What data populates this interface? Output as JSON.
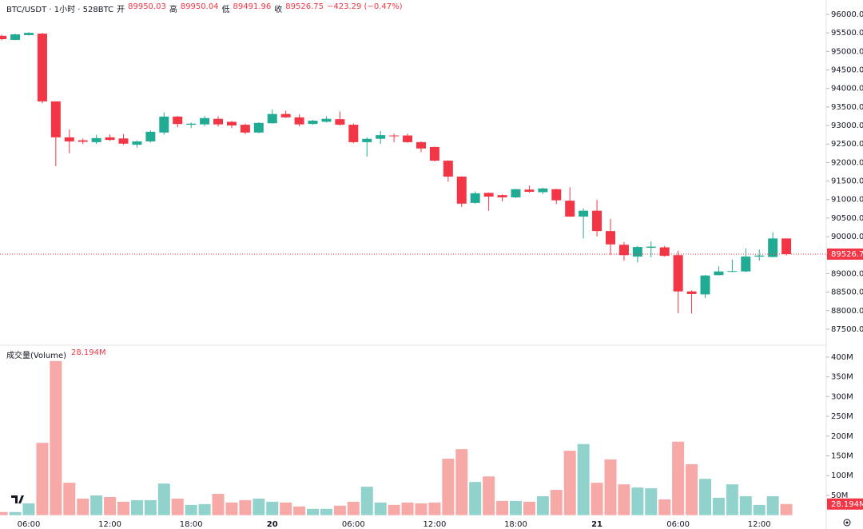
{
  "chart_data": [
    {
      "type": "candlestick",
      "title": "BTC/USDT · 1小时 · 528BTC",
      "ohlc_labels": [
        "开",
        "高",
        "低",
        "收"
      ],
      "change_label": "−423.29 (−0.47%)",
      "categories": [
        null,
        null,
        "06:00",
        null,
        null,
        null,
        null,
        null,
        "12:00",
        null,
        null,
        null,
        null,
        null,
        "18:00",
        null,
        null,
        null,
        null,
        null,
        "20",
        null,
        null,
        null,
        null,
        null,
        "06:00",
        null,
        null,
        null,
        null,
        null,
        "12:00",
        null,
        null,
        null,
        null,
        null,
        "18:00",
        null,
        null,
        null,
        null,
        null,
        "21",
        null,
        null,
        null,
        null,
        null,
        "06:00",
        null,
        null,
        null,
        null,
        null,
        "12:00",
        null,
        null
      ],
      "open": [
        95420,
        95310,
        95440,
        95480,
        93650,
        92680,
        92600,
        92550,
        92680,
        92650,
        92480,
        92570,
        92810,
        93240,
        93020,
        93030,
        93180,
        93100,
        93020,
        92810,
        93060,
        93310,
        93220,
        93040,
        93100,
        93170,
        93020,
        92550,
        92640,
        92730,
        92730,
        92550,
        92420,
        92050,
        91620,
        90910,
        91180,
        91120,
        91060,
        91270,
        91200,
        91280,
        90970,
        90540,
        90700,
        90150,
        89780,
        89460,
        89700,
        89710,
        89500,
        88520,
        88440,
        88960,
        89050,
        89060,
        89460,
        89450,
        89950.03
      ],
      "high": [
        95450,
        95480,
        95520,
        95500,
        93650,
        92890,
        92650,
        92750,
        92760,
        92770,
        92600,
        92870,
        93350,
        93260,
        93080,
        93260,
        93250,
        93120,
        93050,
        93090,
        93430,
        93400,
        93300,
        93150,
        93250,
        93380,
        93050,
        92680,
        92850,
        92780,
        92780,
        92570,
        92430,
        92060,
        91630,
        91220,
        91190,
        91140,
        91290,
        91380,
        91320,
        91290,
        91330,
        90760,
        90990,
        90480,
        89850,
        89750,
        89870,
        89750,
        89620,
        88550,
        88970,
        89200,
        89380,
        89680,
        89650,
        90120,
        89950.04
      ],
      "low": [
        95300,
        95300,
        95430,
        93600,
        91900,
        92250,
        92500,
        92500,
        92580,
        92480,
        92400,
        92540,
        92750,
        92950,
        92930,
        92980,
        92970,
        92930,
        92760,
        92790,
        93050,
        93200,
        92980,
        93020,
        93080,
        93000,
        92520,
        92160,
        92500,
        92550,
        92530,
        92280,
        92030,
        91480,
        90800,
        90890,
        90700,
        90950,
        91040,
        91180,
        91150,
        90880,
        90530,
        89950,
        90000,
        89500,
        89350,
        89300,
        89440,
        89460,
        87930,
        87920,
        88340,
        88950,
        89040,
        89040,
        89350,
        89440,
        89491.96
      ],
      "close": [
        95330,
        95460,
        95500,
        93650,
        92680,
        92570,
        92560,
        92660,
        92610,
        92510,
        92570,
        92830,
        93240,
        93040,
        93050,
        93200,
        93030,
        93000,
        92810,
        93070,
        93310,
        93220,
        93030,
        93130,
        93180,
        93020,
        92550,
        92640,
        92740,
        92720,
        92550,
        92380,
        92050,
        91620,
        90890,
        91170,
        91080,
        91060,
        91280,
        91210,
        91300,
        90980,
        90540,
        90700,
        90150,
        89790,
        89500,
        89720,
        89730,
        89480,
        88520,
        88450,
        88950,
        89060,
        89070,
        89460,
        89490,
        89950,
        89526.75
      ],
      "up_color": "#22ab94",
      "down_color": "#f23645",
      "ylim": [
        87111,
        96388
      ],
      "yticks": [
        {
          "value": 87500,
          "label": "87500.00"
        },
        {
          "value": 88000,
          "label": "88000.00"
        },
        {
          "value": 88500,
          "label": "88500.00"
        },
        {
          "value": 89000,
          "label": "89000.00"
        },
        {
          "value": 89500,
          "label": "89500.00"
        },
        {
          "value": 90000,
          "label": "90000.00"
        },
        {
          "value": 90500,
          "label": "90500.00"
        },
        {
          "value": 91000,
          "label": "91000.00"
        },
        {
          "value": 91500,
          "label": "91500.00"
        },
        {
          "value": 92000,
          "label": "92000.00"
        },
        {
          "value": 92500,
          "label": "92500.00"
        },
        {
          "value": 93000,
          "label": "93000.00"
        },
        {
          "value": 93500,
          "label": "93500.00"
        },
        {
          "value": 94000,
          "label": "94000.00"
        },
        {
          "value": 94500,
          "label": "94500.00"
        },
        {
          "value": 95000,
          "label": "95000.00"
        },
        {
          "value": 95500,
          "label": "95500.00"
        },
        {
          "value": 96000,
          "label": "96000.00"
        }
      ]
    },
    {
      "type": "bar",
      "title": "成交量(Volume)",
      "last_value_label": "28.194M",
      "values": [
        8,
        8,
        30,
        183,
        390,
        82,
        42,
        50,
        46,
        34,
        38,
        38,
        80,
        42,
        26,
        28,
        54,
        32,
        38,
        42,
        34,
        32,
        22,
        16,
        16,
        24,
        34,
        72,
        32,
        26,
        32,
        30,
        32,
        143,
        167,
        84,
        98,
        36,
        36,
        34,
        48,
        64,
        163,
        180,
        82,
        141,
        78,
        70,
        68,
        40,
        186,
        129,
        92,
        44,
        78,
        48,
        26,
        48,
        28.194
      ],
      "up_color": "#92d2cc",
      "down_color": "#f7a9a7",
      "ylim": [
        0,
        424
      ],
      "yticks": [
        {
          "value": 50,
          "label": "50M"
        },
        {
          "value": 100,
          "label": "100M"
        },
        {
          "value": 150,
          "label": "150M"
        },
        {
          "value": 200,
          "label": "200M"
        },
        {
          "value": 250,
          "label": "250M"
        },
        {
          "value": 300,
          "label": "300M"
        },
        {
          "value": 350,
          "label": "350M"
        },
        {
          "value": 400,
          "label": "400M"
        }
      ]
    }
  ]
}
